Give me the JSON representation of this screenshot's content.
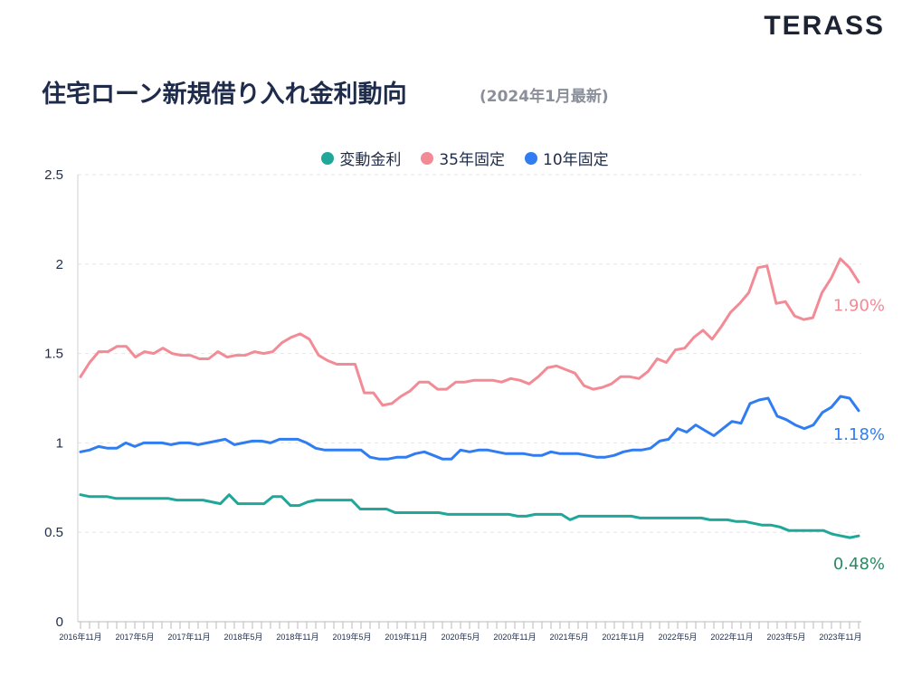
{
  "brand": {
    "logo_text": "TERASS"
  },
  "header": {
    "title": "住宅ローン新規借り入れ金利動向",
    "subtitle": "(2024年1月最新)"
  },
  "chart_data": {
    "type": "line",
    "ylim": [
      0,
      2.5
    ],
    "yticks": [
      "0",
      "0.5",
      "1",
      "1.5",
      "2",
      "2.5"
    ],
    "grid": "horizontal dashed",
    "legend_position": "top-center",
    "x_tick_labels": [
      "2016年11月",
      "2017年5月",
      "2017年11月",
      "2018年5月",
      "2018年11月",
      "2019年5月",
      "2019年11月",
      "2020年5月",
      "2020年11月",
      "2021年5月",
      "2021年11月",
      "2022年5月",
      "2022年11月",
      "2023年5月",
      "2023年11月"
    ],
    "series": [
      {
        "name": "変動金利",
        "color": "#1fa89a",
        "end_label": "0.48%",
        "end_label_color": "#2a8a64",
        "values": [
          0.71,
          0.7,
          0.7,
          0.7,
          0.69,
          0.69,
          0.69,
          0.69,
          0.69,
          0.69,
          0.69,
          0.68,
          0.68,
          0.68,
          0.68,
          0.67,
          0.66,
          0.71,
          0.66,
          0.66,
          0.66,
          0.66,
          0.7,
          0.7,
          0.65,
          0.65,
          0.67,
          0.68,
          0.68,
          0.68,
          0.68,
          0.68,
          0.63,
          0.63,
          0.63,
          0.63,
          0.61,
          0.61,
          0.61,
          0.61,
          0.61,
          0.61,
          0.6,
          0.6,
          0.6,
          0.6,
          0.6,
          0.6,
          0.6,
          0.6,
          0.59,
          0.59,
          0.6,
          0.6,
          0.6,
          0.6,
          0.57,
          0.59,
          0.59,
          0.59,
          0.59,
          0.59,
          0.59,
          0.59,
          0.58,
          0.58,
          0.58,
          0.58,
          0.58,
          0.58,
          0.58,
          0.58,
          0.57,
          0.57,
          0.57,
          0.56,
          0.56,
          0.55,
          0.54,
          0.54,
          0.53,
          0.51,
          0.51,
          0.51,
          0.51,
          0.51,
          0.49,
          0.48,
          0.47,
          0.48
        ]
      },
      {
        "name": "35年固定",
        "color": "#f28b96",
        "end_label": "1.90%",
        "end_label_color": "#f28b96",
        "values": [
          1.37,
          1.45,
          1.51,
          1.51,
          1.54,
          1.54,
          1.48,
          1.51,
          1.5,
          1.53,
          1.5,
          1.49,
          1.49,
          1.47,
          1.47,
          1.51,
          1.48,
          1.49,
          1.49,
          1.51,
          1.5,
          1.51,
          1.56,
          1.59,
          1.61,
          1.58,
          1.49,
          1.46,
          1.44,
          1.44,
          1.44,
          1.28,
          1.28,
          1.21,
          1.22,
          1.26,
          1.29,
          1.34,
          1.34,
          1.3,
          1.3,
          1.34,
          1.34,
          1.35,
          1.35,
          1.35,
          1.34,
          1.36,
          1.35,
          1.33,
          1.37,
          1.42,
          1.43,
          1.41,
          1.39,
          1.32,
          1.3,
          1.31,
          1.33,
          1.37,
          1.37,
          1.36,
          1.4,
          1.47,
          1.45,
          1.52,
          1.53,
          1.59,
          1.63,
          1.58,
          1.65,
          1.73,
          1.78,
          1.84,
          1.98,
          1.99,
          1.78,
          1.79,
          1.71,
          1.69,
          1.7,
          1.84,
          1.92,
          2.03,
          1.98,
          1.9
        ]
      },
      {
        "name": "10年固定",
        "color": "#2f7df0",
        "end_label": "1.18%",
        "end_label_color": "#2f7df0",
        "values": [
          0.95,
          0.96,
          0.98,
          0.97,
          0.97,
          1.0,
          0.98,
          1.0,
          1.0,
          1.0,
          0.99,
          1.0,
          1.0,
          0.99,
          1.0,
          1.01,
          1.02,
          0.99,
          1.0,
          1.01,
          1.01,
          1.0,
          1.02,
          1.02,
          1.02,
          1.0,
          0.97,
          0.96,
          0.96,
          0.96,
          0.96,
          0.96,
          0.92,
          0.91,
          0.91,
          0.92,
          0.92,
          0.94,
          0.95,
          0.93,
          0.91,
          0.91,
          0.96,
          0.95,
          0.96,
          0.96,
          0.95,
          0.94,
          0.94,
          0.94,
          0.93,
          0.93,
          0.95,
          0.94,
          0.94,
          0.94,
          0.93,
          0.92,
          0.92,
          0.93,
          0.95,
          0.96,
          0.96,
          0.97,
          1.01,
          1.02,
          1.08,
          1.06,
          1.1,
          1.07,
          1.04,
          1.08,
          1.12,
          1.11,
          1.22,
          1.24,
          1.25,
          1.15,
          1.13,
          1.1,
          1.08,
          1.1,
          1.17,
          1.2,
          1.26,
          1.25,
          1.18
        ]
      }
    ]
  }
}
